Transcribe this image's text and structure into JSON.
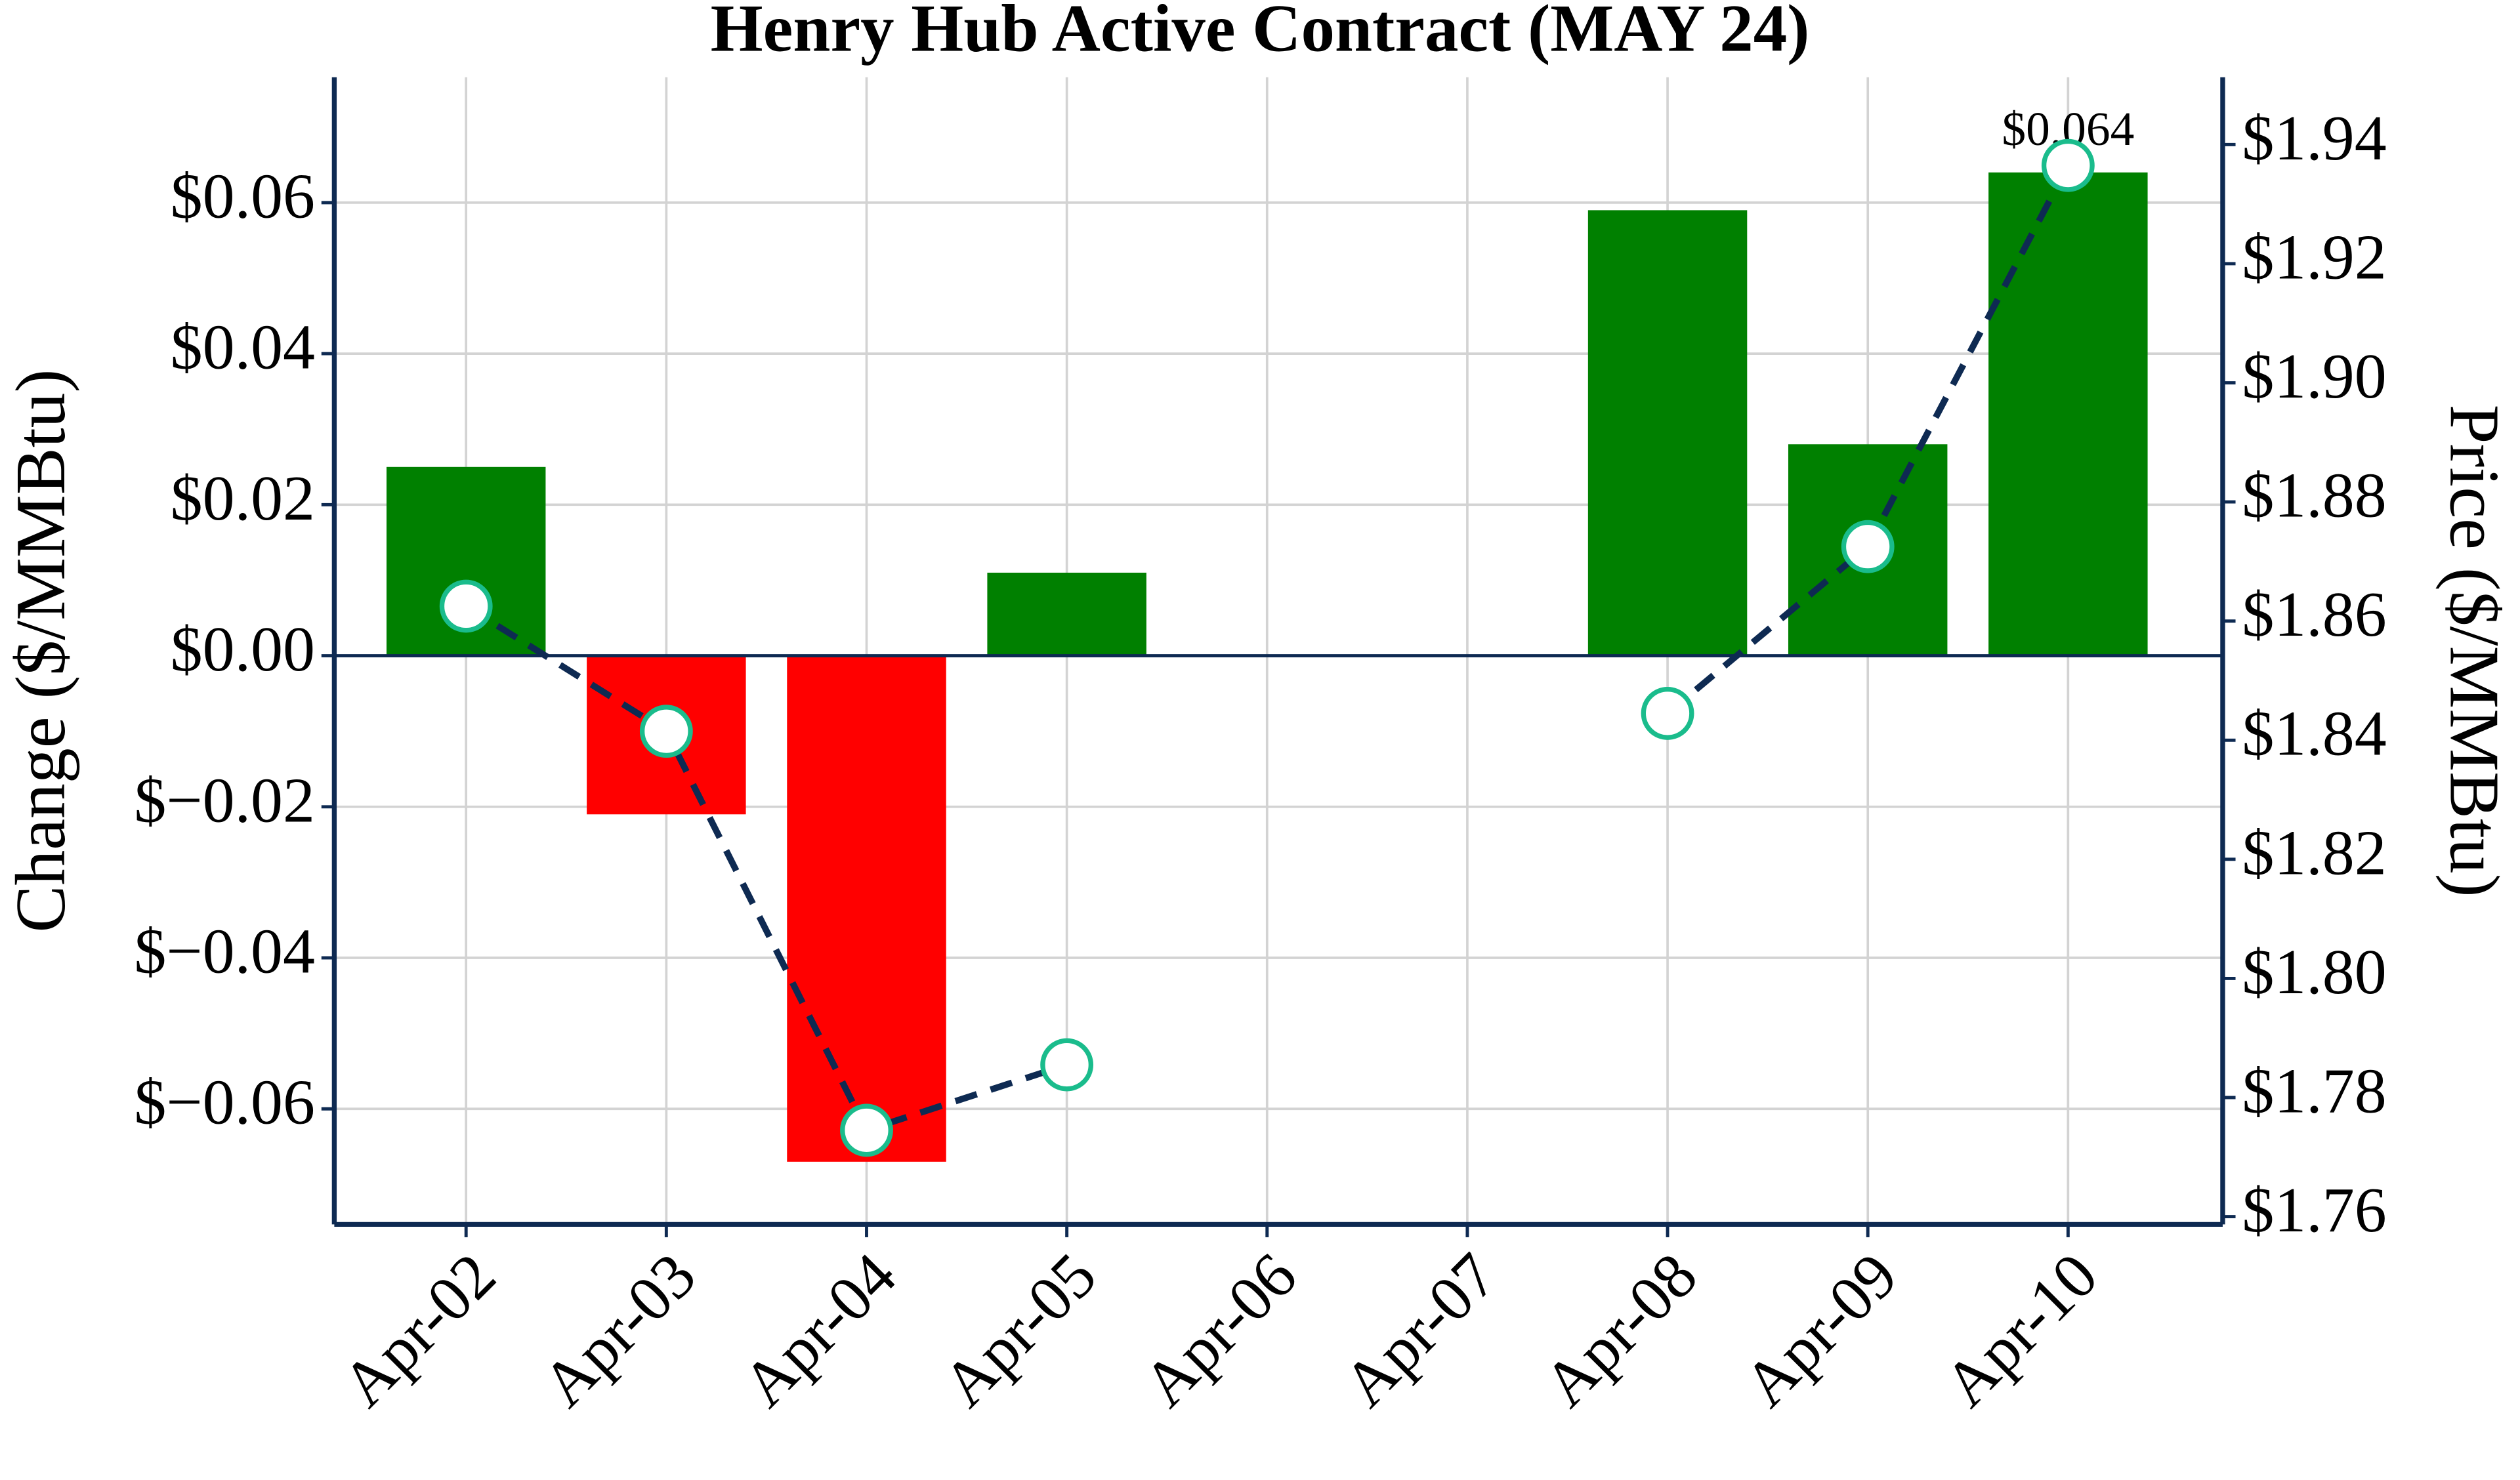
{
  "chart_data": {
    "type": "bar+line",
    "title": "Henry Hub Active Contract (MAY 24)",
    "categories": [
      "Apr-02",
      "Apr-03",
      "Apr-04",
      "Apr-05",
      "Apr-06",
      "Apr-07",
      "Apr-08",
      "Apr-09",
      "Apr-10"
    ],
    "series": [
      {
        "name": "Change",
        "type": "bar",
        "positive_color": "#008000",
        "negative_color": "#ff0000",
        "values": [
          0.025,
          -0.021,
          -0.067,
          0.011,
          null,
          null,
          0.059,
          0.028,
          0.064
        ],
        "value_labels": [
          null,
          null,
          null,
          null,
          null,
          null,
          null,
          null,
          "$0.064"
        ]
      },
      {
        "name": "Price",
        "type": "line",
        "axis": "y2",
        "color": "#0e2a52",
        "marker_edge_color": "#1abc8c",
        "marker_face_color": "#ffffff",
        "dashed": true,
        "values": [
          1.8625,
          1.8415,
          1.7745,
          1.7855,
          null,
          null,
          1.8445,
          1.8725,
          1.9365
        ]
      }
    ],
    "ylabel": "Change ($/MMBtu)",
    "y2label": "Price ($/MMBtu)",
    "ylim": [
      -0.0753,
      0.0766
    ],
    "yticks": [
      {
        "value": -0.06,
        "label": "$−0.06"
      },
      {
        "value": -0.04,
        "label": "$−0.04"
      },
      {
        "value": -0.02,
        "label": "$−0.02"
      },
      {
        "value": 0,
        "label": "$0.00"
      },
      {
        "value": 0.02,
        "label": "$0.02"
      },
      {
        "value": 0.04,
        "label": "$0.04"
      },
      {
        "value": 0.06,
        "label": "$0.06"
      }
    ],
    "y2lim": [
      1.7587,
      1.9513
    ],
    "y2ticks": [
      {
        "value": 1.76,
        "label": "$1.76"
      },
      {
        "value": 1.78,
        "label": "$1.78"
      },
      {
        "value": 1.8,
        "label": "$1.80"
      },
      {
        "value": 1.82,
        "label": "$1.82"
      },
      {
        "value": 1.84,
        "label": "$1.84"
      },
      {
        "value": 1.86,
        "label": "$1.86"
      },
      {
        "value": 1.88,
        "label": "$1.88"
      },
      {
        "value": 1.9,
        "label": "$1.90"
      },
      {
        "value": 1.92,
        "label": "$1.92"
      },
      {
        "value": 1.94,
        "label": "$1.94"
      }
    ],
    "grid": true
  }
}
